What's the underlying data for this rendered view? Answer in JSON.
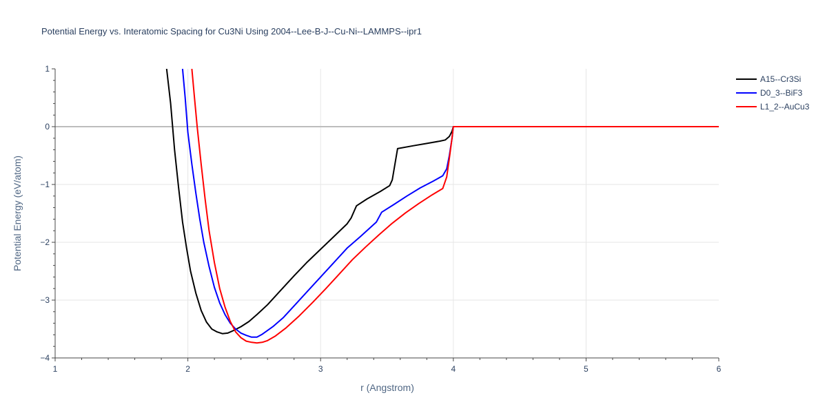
{
  "chart_data": {
    "type": "line",
    "title": "Potential Energy vs. Interatomic Spacing for Cu3Ni Using 2004--Lee-B-J--Cu-Ni--LAMMPS--ipr1",
    "xlabel": "r (Angstrom)",
    "ylabel": "Potential Energy (eV/atom)",
    "xlim": [
      1,
      6
    ],
    "ylim": [
      -4,
      1
    ],
    "x_ticks": [
      1,
      2,
      3,
      4,
      5,
      6
    ],
    "y_ticks": [
      1,
      0,
      -1,
      -2,
      -3,
      -4
    ],
    "y_tick_labels": [
      "1",
      "0",
      "−1",
      "−2",
      "−3",
      "−4"
    ],
    "grid": true,
    "legend_position": "top-right",
    "series": [
      {
        "name": "A15--Cr3Si",
        "color": "#000000",
        "x": [
          1.84,
          1.87,
          1.9,
          1.93,
          1.96,
          1.99,
          2.02,
          2.06,
          2.1,
          2.14,
          2.18,
          2.22,
          2.26,
          2.3,
          2.34,
          2.4,
          2.46,
          2.52,
          2.6,
          2.7,
          2.8,
          2.9,
          3.0,
          3.1,
          3.2,
          3.23,
          3.27,
          3.35,
          3.45,
          3.52,
          3.54,
          3.58,
          3.7,
          3.8,
          3.9,
          3.94,
          3.97,
          3.99,
          4.0,
          4.5,
          5.0,
          5.5,
          6.0
        ],
        "y": [
          1.0,
          0.4,
          -0.4,
          -1.05,
          -1.65,
          -2.1,
          -2.5,
          -2.88,
          -3.18,
          -3.38,
          -3.5,
          -3.55,
          -3.58,
          -3.57,
          -3.53,
          -3.46,
          -3.37,
          -3.25,
          -3.08,
          -2.83,
          -2.58,
          -2.34,
          -2.12,
          -1.9,
          -1.68,
          -1.58,
          -1.37,
          -1.25,
          -1.12,
          -1.02,
          -0.92,
          -0.38,
          -0.33,
          -0.29,
          -0.25,
          -0.23,
          -0.17,
          -0.08,
          0.0,
          0.0,
          0.0,
          0.0,
          0.0
        ]
      },
      {
        "name": "D0_3--BiF3",
        "color": "#0000ff",
        "x": [
          1.96,
          1.98,
          2.0,
          2.03,
          2.06,
          2.09,
          2.12,
          2.16,
          2.2,
          2.24,
          2.28,
          2.32,
          2.36,
          2.4,
          2.44,
          2.48,
          2.52,
          2.56,
          2.64,
          2.72,
          2.8,
          2.9,
          3.0,
          3.1,
          3.2,
          3.3,
          3.42,
          3.46,
          3.55,
          3.65,
          3.75,
          3.85,
          3.92,
          3.95,
          3.97,
          3.99,
          4.0,
          4.5,
          5.0,
          5.5,
          6.0
        ],
        "y": [
          1.0,
          0.5,
          -0.1,
          -0.65,
          -1.15,
          -1.6,
          -2.0,
          -2.42,
          -2.78,
          -3.05,
          -3.25,
          -3.4,
          -3.5,
          -3.57,
          -3.61,
          -3.64,
          -3.64,
          -3.59,
          -3.46,
          -3.3,
          -3.1,
          -2.85,
          -2.6,
          -2.35,
          -2.1,
          -1.9,
          -1.65,
          -1.48,
          -1.35,
          -1.2,
          -1.06,
          -0.94,
          -0.85,
          -0.73,
          -0.5,
          -0.2,
          0.0,
          0.0,
          0.0,
          0.0,
          0.0
        ]
      },
      {
        "name": "L1_2--AuCu3",
        "color": "#ff0000",
        "x": [
          2.03,
          2.05,
          2.07,
          2.1,
          2.13,
          2.16,
          2.2,
          2.24,
          2.28,
          2.32,
          2.36,
          2.4,
          2.44,
          2.48,
          2.52,
          2.56,
          2.6,
          2.66,
          2.74,
          2.84,
          2.94,
          3.04,
          3.14,
          3.24,
          3.34,
          3.44,
          3.54,
          3.64,
          3.74,
          3.84,
          3.92,
          3.95,
          3.97,
          3.99,
          4.0,
          4.5,
          5.0,
          5.5,
          6.0
        ],
        "y": [
          1.0,
          0.5,
          0.0,
          -0.65,
          -1.25,
          -1.8,
          -2.35,
          -2.8,
          -3.12,
          -3.37,
          -3.55,
          -3.65,
          -3.71,
          -3.73,
          -3.74,
          -3.73,
          -3.7,
          -3.62,
          -3.48,
          -3.27,
          -3.04,
          -2.8,
          -2.55,
          -2.3,
          -2.08,
          -1.87,
          -1.67,
          -1.49,
          -1.33,
          -1.18,
          -1.07,
          -0.87,
          -0.55,
          -0.2,
          0.0,
          0.0,
          0.0,
          0.0,
          0.0
        ]
      }
    ]
  }
}
